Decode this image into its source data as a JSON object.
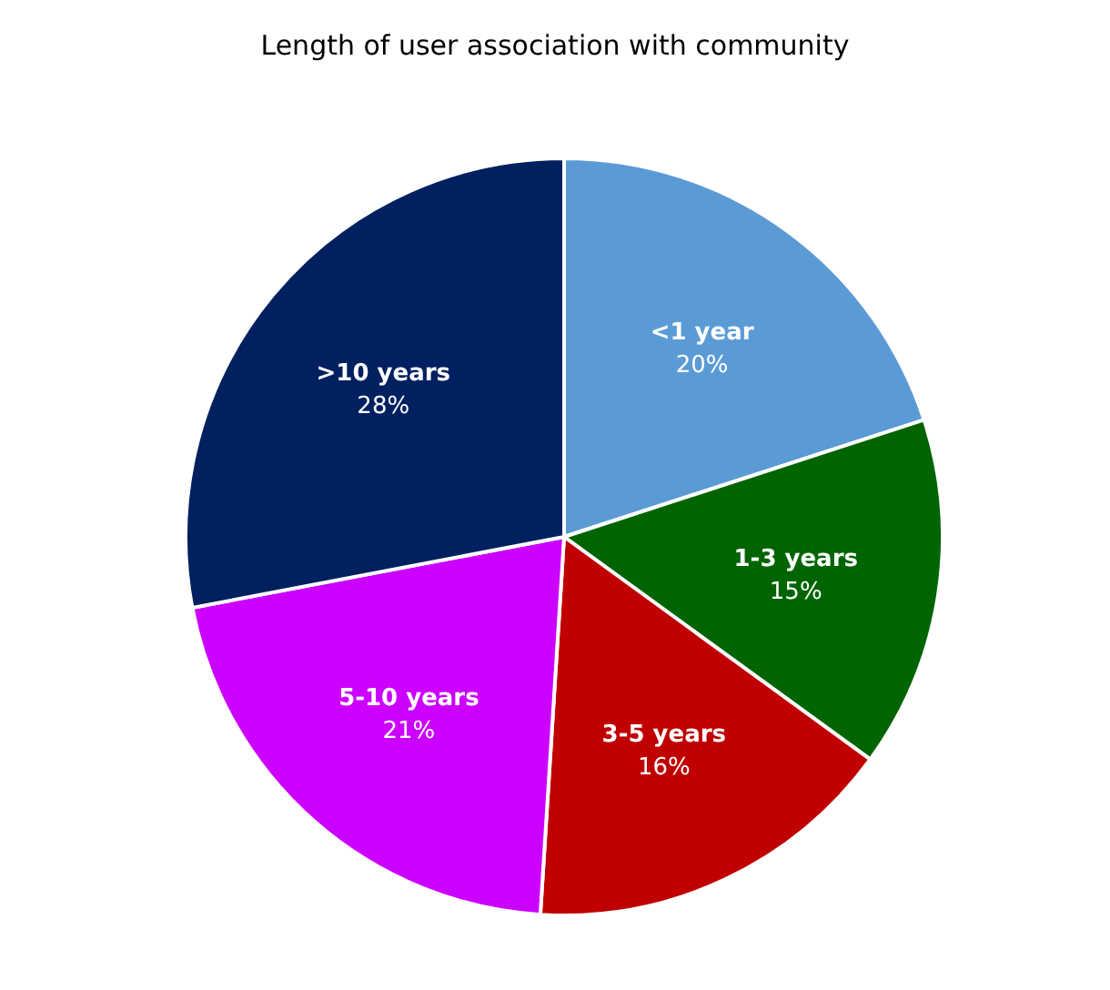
{
  "chart_data": {
    "type": "pie",
    "title": "Length of user association with community",
    "categories": [
      "<1 year",
      "1-3 years",
      "3-5 years",
      "5-10 years",
      ">10 years"
    ],
    "values": [
      20,
      15,
      16,
      21,
      28
    ],
    "colors": [
      "#5b9bd5",
      "#006400",
      "#c00000",
      "#cc00ff",
      "#002060"
    ],
    "value_labels": [
      "20%",
      "15%",
      "16%",
      "21%",
      "28%"
    ],
    "legend": false
  }
}
